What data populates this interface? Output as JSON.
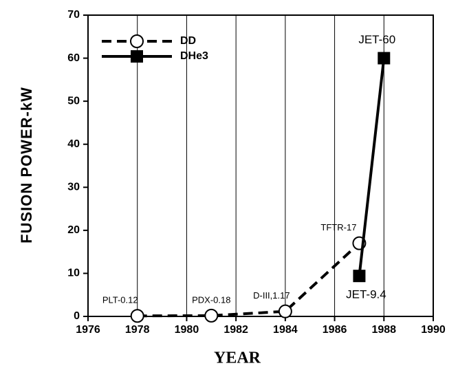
{
  "chart_data": {
    "type": "line",
    "xlabel": "YEAR",
    "ylabel": "FUSION POWER-kW",
    "xlim": [
      1976,
      1990
    ],
    "xticks": [
      1976,
      1978,
      1980,
      1982,
      1984,
      1986,
      1988,
      1990
    ],
    "ylim": [
      0,
      70
    ],
    "yticks": [
      0,
      10,
      20,
      30,
      40,
      50,
      60,
      70
    ],
    "grid": "x",
    "legend": "upper left",
    "series": [
      {
        "name": "DD",
        "color": "#000000",
        "line_style": "dashed",
        "marker": "circle",
        "x": [
          1978,
          1981,
          1984,
          1987
        ],
        "values": [
          0.12,
          0.18,
          1.17,
          17
        ],
        "value_labels": [
          "PLT-0.12",
          "PDX-0.18",
          "D-III,1.17",
          "TFTR-17"
        ]
      },
      {
        "name": "DHe3",
        "color": "#000000",
        "line_style": "solid",
        "marker": "square",
        "x": [
          1987,
          1988
        ],
        "values": [
          9.4,
          60
        ],
        "value_labels": [
          "JET-9.4",
          "JET-60"
        ]
      }
    ]
  }
}
